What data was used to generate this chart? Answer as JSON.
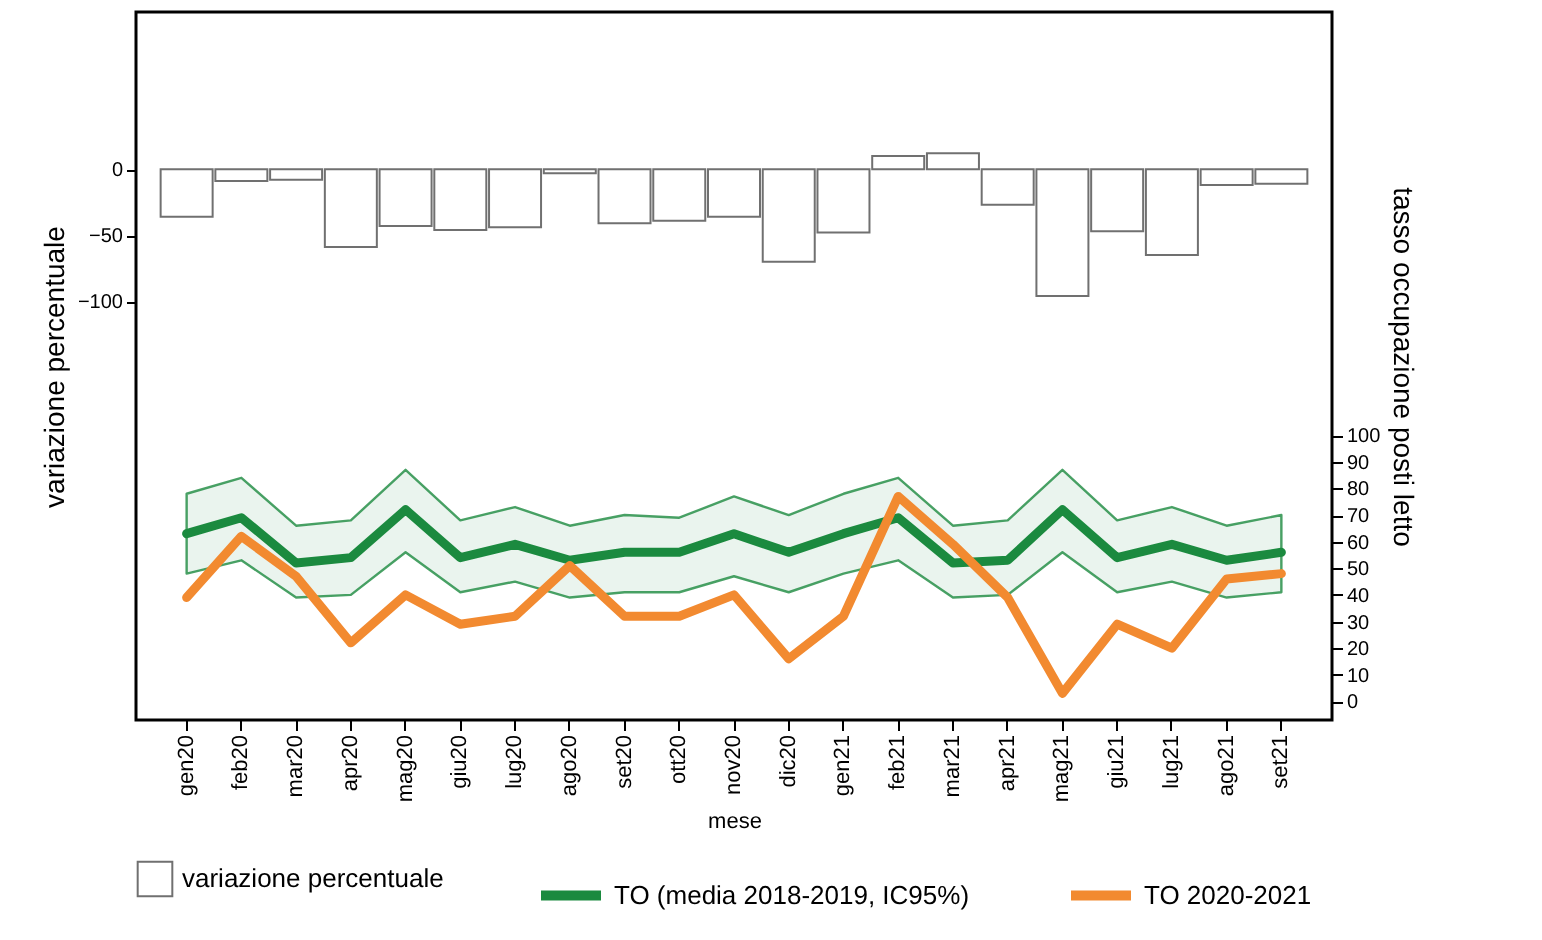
{
  "chart_data": {
    "type": "bar",
    "xlabel": "mese",
    "ylabel": "variazione percentuale",
    "y2label": "tasso occupazione posti letto",
    "categories": [
      "gen20",
      "feb20",
      "mar20",
      "apr20",
      "mag20",
      "giu20",
      "lug20",
      "ago20",
      "set20",
      "ott20",
      "nov20",
      "dic20",
      "gen21",
      "feb21",
      "mar21",
      "apr21",
      "mag21",
      "giu21",
      "lug21",
      "ago21",
      "set21"
    ],
    "ylim": [
      -417,
      119
    ],
    "yticks": [
      -100,
      -50,
      0
    ],
    "y2lim": [
      -7,
      259
    ],
    "y2ticks": [
      0,
      10,
      20,
      30,
      40,
      50,
      60,
      70,
      80,
      90,
      100
    ],
    "legend": "bottom",
    "series": [
      {
        "name": "variazione percentuale",
        "color": "#ffffff",
        "values": [
          -36,
          -9,
          -8,
          -59,
          -43,
          -46,
          -44,
          -3,
          -41,
          -39,
          -36,
          -70,
          -48,
          10,
          12,
          -27,
          -96,
          -47,
          -65,
          -12,
          -11
        ]
      },
      {
        "name": "TO (media 2018-2019, IC95%)",
        "type": "line",
        "axis": "y2",
        "color": "#1b8a3f",
        "values": [
          63,
          69,
          52,
          54,
          72,
          54,
          59,
          53,
          56,
          56,
          63,
          56,
          63,
          69,
          52,
          53,
          72,
          54,
          59,
          53,
          56
        ],
        "lower": [
          48,
          53,
          39,
          40,
          56,
          41,
          45,
          39,
          41,
          41,
          47,
          41,
          48,
          53,
          39,
          40,
          56,
          41,
          45,
          39,
          41
        ],
        "upper": [
          78,
          84,
          66,
          68,
          87,
          68,
          73,
          66,
          70,
          69,
          77,
          70,
          78,
          84,
          66,
          68,
          87,
          68,
          73,
          66,
          70
        ]
      },
      {
        "name": "TO 2020-2021",
        "type": "line",
        "axis": "y2",
        "color": "#f28a30",
        "values": [
          39,
          62,
          47,
          22,
          40,
          29,
          32,
          51,
          32,
          32,
          40,
          16,
          32,
          77,
          59,
          39,
          3,
          29,
          20,
          46,
          48
        ]
      }
    ]
  }
}
